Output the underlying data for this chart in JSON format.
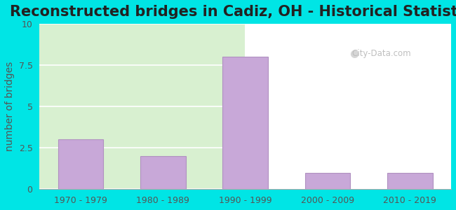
{
  "title": "Reconstructed bridges in Cadiz, OH - Historical Statistics",
  "categories": [
    "1970 - 1979",
    "1980 - 1989",
    "1990 - 1999",
    "2000 - 2009",
    "2010 - 2019"
  ],
  "values": [
    3,
    2,
    8,
    1,
    1
  ],
  "bar_color": "#c8a8d8",
  "bar_edgecolor": "#b090c0",
  "ylabel": "number of bridges",
  "ylim": [
    0,
    10
  ],
  "yticks": [
    0,
    2.5,
    5,
    7.5,
    10
  ],
  "outer_bg": "#00e5e5",
  "inner_bg_left": "#d8f0d0",
  "inner_bg_right": "#ffffff",
  "title_fontsize": 15,
  "ylabel_fontsize": 10,
  "tick_fontsize": 9,
  "watermark": "City-Data.com"
}
